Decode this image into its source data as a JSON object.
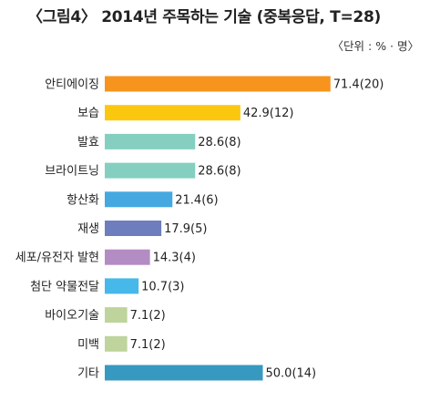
{
  "chart_data": {
    "type": "bar",
    "orientation": "horizontal",
    "title": "〈그림4〉 2014년 주목하는 기술 (중복응답, T=28)",
    "unit_label": "〈단위 : % · 명〉",
    "categories": [
      "안티에이징",
      "보습",
      "발효",
      "브라이트닝",
      "항산화",
      "재생",
      "세포/유전자 발현",
      "첨단 약물전달",
      "바이오기술",
      "미백",
      "기타"
    ],
    "values": [
      71.4,
      42.9,
      28.6,
      28.6,
      21.4,
      17.9,
      14.3,
      10.7,
      7.1,
      7.1,
      50.0
    ],
    "value_labels": [
      "71.4(20)",
      "42.9(12)",
      "28.6(8)",
      "28.6(8)",
      "21.4(6)",
      "17.9(5)",
      "14.3(4)",
      "10.7(3)",
      "7.1(2)",
      "7.1(2)",
      "50.0(14)"
    ],
    "colors": [
      "#F7941D",
      "#FCC80F",
      "#84CFC0",
      "#84CFC0",
      "#45A8E0",
      "#6E7DBE",
      "#B38CC4",
      "#47B8EA",
      "#BED49C",
      "#BED49C",
      "#3799C0"
    ],
    "xlim": [
      0,
      100
    ],
    "grid": false,
    "legend": "none"
  }
}
